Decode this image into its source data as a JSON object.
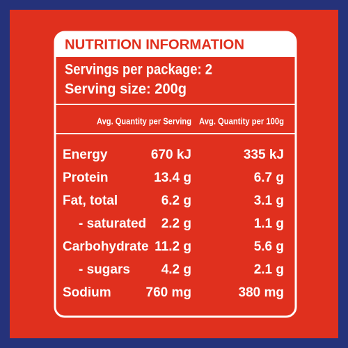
{
  "title": "NUTRITION INFORMATION",
  "servings": [
    "Servings per package: 2",
    "Serving size: 200g"
  ],
  "table": {
    "header": [
      "Avg. Quantity per Serving",
      "Avg. Quantity per 100g"
    ],
    "rows": [
      [
        "Energy",
        "670 kJ",
        "335 kJ"
      ],
      [
        "Protein",
        "13.4 g",
        "6.7 g"
      ],
      [
        "Fat, total",
        "6.2 g",
        "3.1 g"
      ],
      [
        "- saturated",
        "2.2 g",
        "1.1 g"
      ],
      [
        "Carbohydrate",
        "11.2 g",
        "5.6 g"
      ],
      [
        "- sugars",
        "4.2 g",
        "2.1 g"
      ],
      [
        "Sodium",
        "760 mg",
        "380 mg"
      ]
    ]
  }
}
